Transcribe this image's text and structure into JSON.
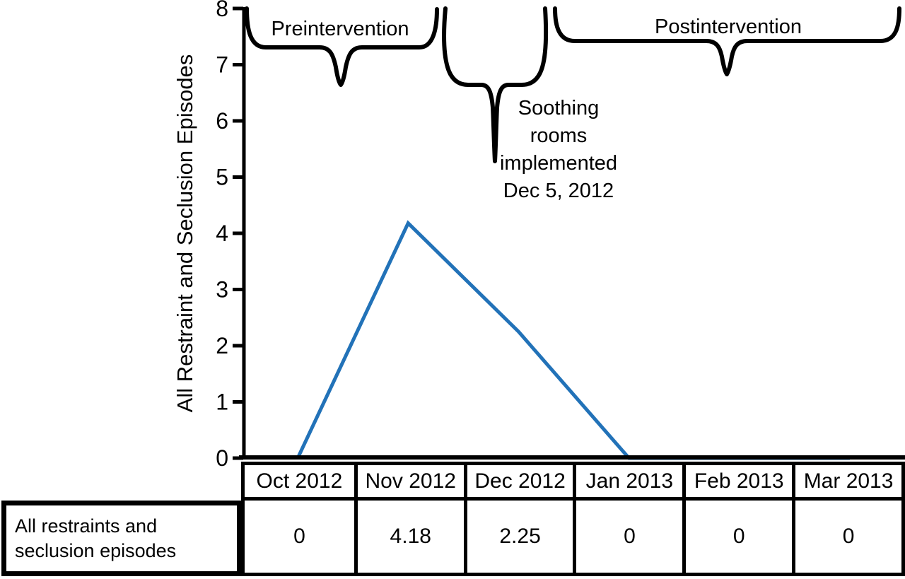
{
  "chart_data": {
    "type": "line",
    "categories": [
      "Oct 2012",
      "Nov 2012",
      "Dec 2012",
      "Jan 2013",
      "Feb 2013",
      "Mar 2013"
    ],
    "series": [
      {
        "name": "All restraints and seclusion episodes",
        "values": [
          0,
          4.18,
          2.25,
          0,
          0,
          0
        ]
      }
    ],
    "xlabel": "",
    "ylabel": "All Restraint and Seclusion Episodes",
    "ylim": [
      0,
      8
    ],
    "yticks": [
      0,
      1,
      2,
      3,
      4,
      5,
      6,
      7,
      8
    ],
    "grid": false,
    "legend_position": "none",
    "line_color": "#2272b8",
    "annotations": {
      "preintervention": "Preintervention",
      "postintervention": "Postintervention",
      "soothing_lines": [
        "Soothing",
        "rooms",
        "implemented",
        "Dec 5, 2012"
      ]
    }
  },
  "table": {
    "row_label_lines": [
      "All restraints and",
      "seclusion episodes"
    ],
    "columns": [
      "Oct 2012",
      "Nov 2012",
      "Dec 2012",
      "Jan 2013",
      "Feb 2013",
      "Mar 2013"
    ],
    "values": [
      "0",
      "4.18",
      "2.25",
      "0",
      "0",
      "0"
    ]
  }
}
